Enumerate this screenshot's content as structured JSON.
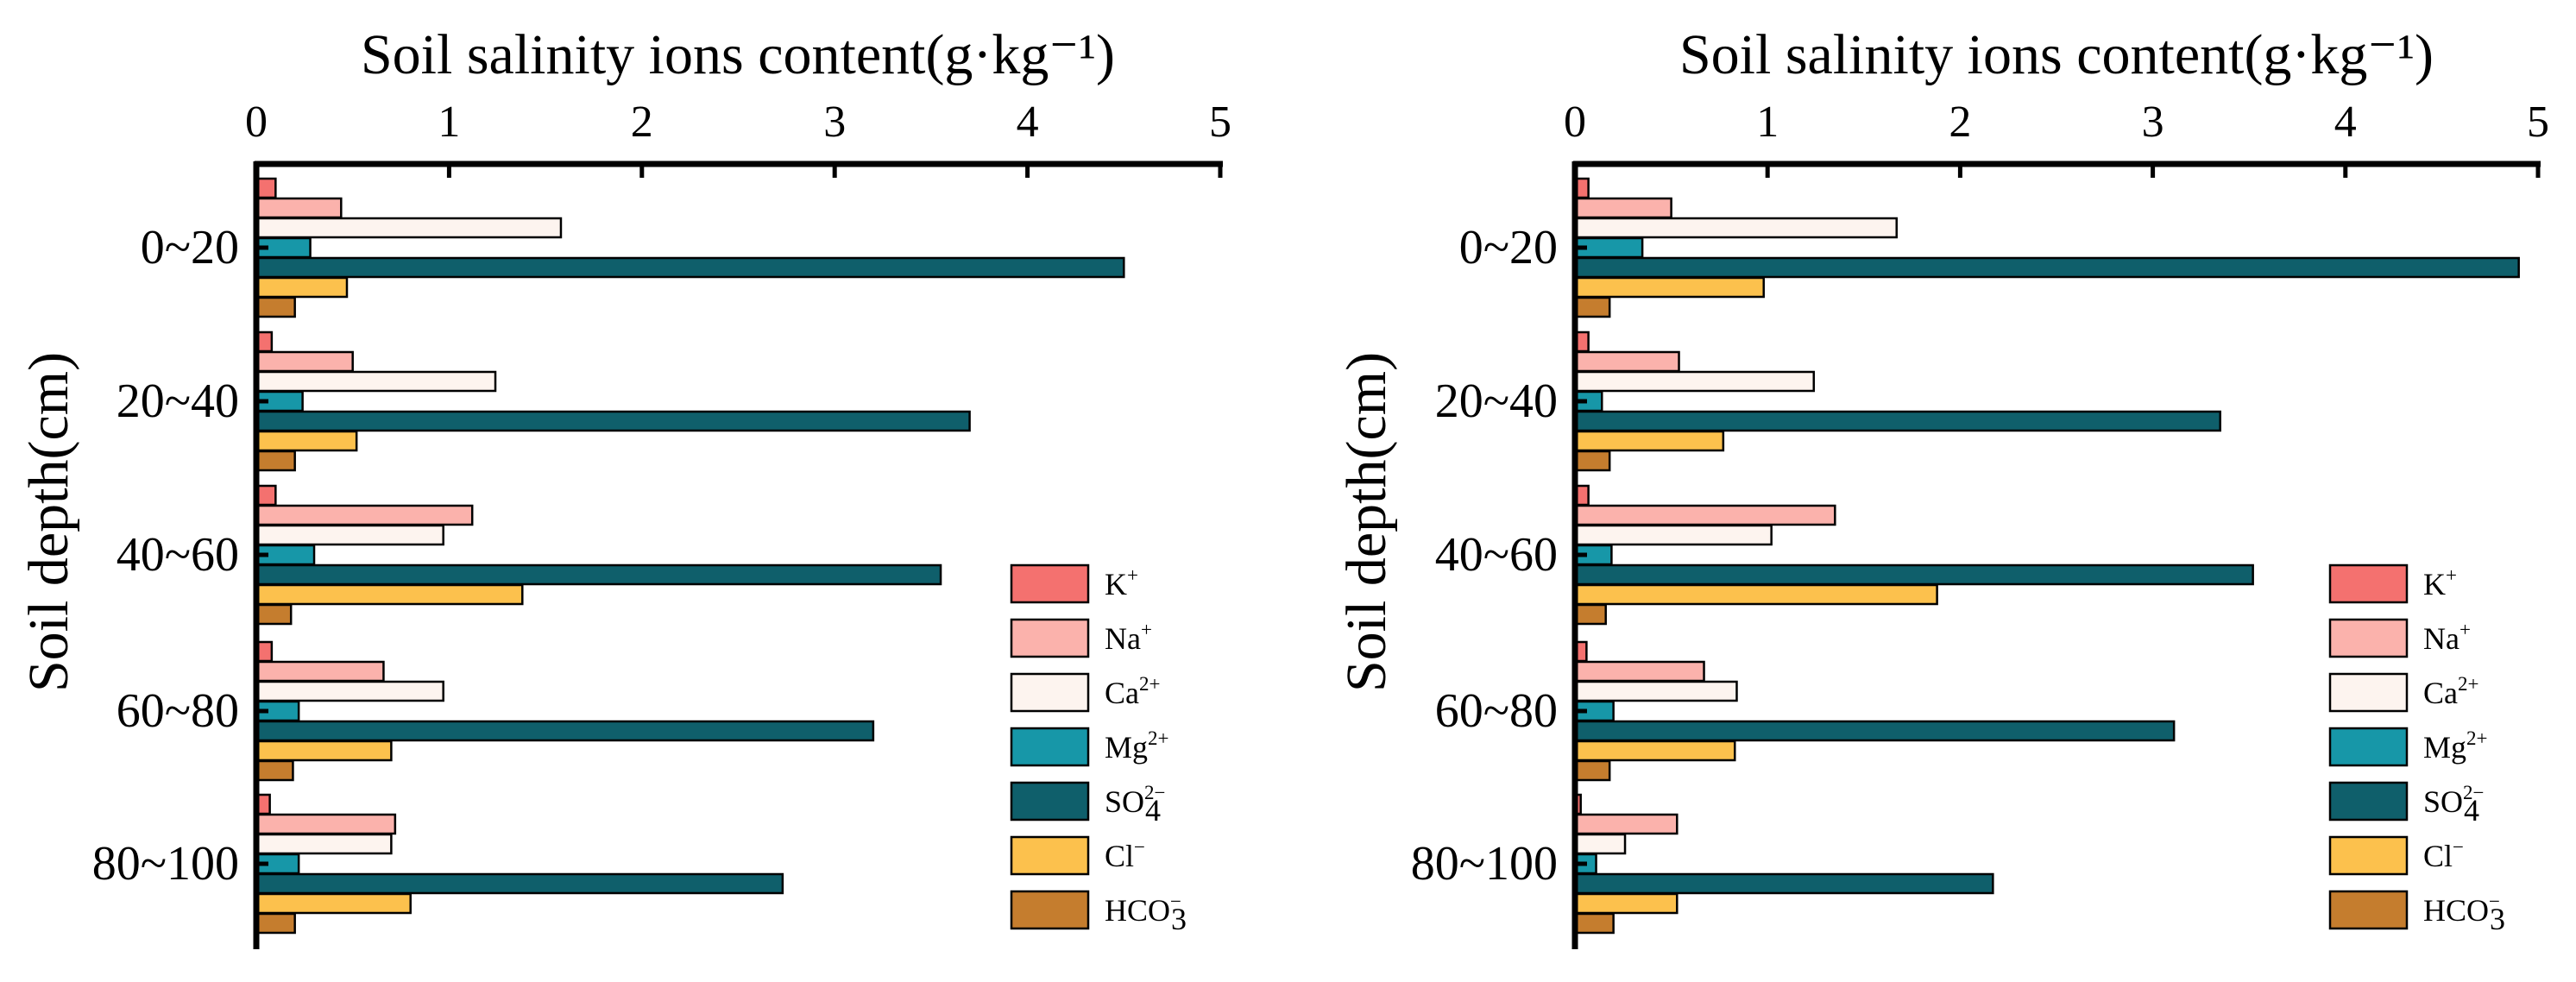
{
  "colors": {
    "K": "#f4716f",
    "Na": "#fbb2ac",
    "Ca": "#fdf4ef",
    "Mg": "#1797a8",
    "SO4": "#0f5f6b",
    "Cl": "#fcc14d",
    "HCO3": "#c57d2e"
  },
  "chart_data": [
    {
      "type": "bar",
      "orientation": "horizontal",
      "xlabel": "Soil salinity ions content(g·kg⁻¹)",
      "ylabel": "Soil depth(cm)",
      "xlim": [
        0,
        5
      ],
      "x_ticks": [
        "0",
        "1",
        "2",
        "3",
        "4",
        "5"
      ],
      "categories": [
        "0~20",
        "20~40",
        "40~60",
        "60~80",
        "80~100"
      ],
      "series": [
        {
          "name": "K+",
          "values": [
            0.1,
            0.08,
            0.1,
            0.08,
            0.07
          ]
        },
        {
          "name": "Na+",
          "values": [
            0.44,
            0.5,
            1.12,
            0.66,
            0.72
          ]
        },
        {
          "name": "Ca2+",
          "values": [
            1.58,
            1.24,
            0.97,
            0.97,
            0.7
          ]
        },
        {
          "name": "Mg2+",
          "values": [
            0.28,
            0.24,
            0.3,
            0.22,
            0.22
          ]
        },
        {
          "name": "SO4 2-",
          "values": [
            4.5,
            3.7,
            3.55,
            3.2,
            2.73
          ]
        },
        {
          "name": "Cl-",
          "values": [
            0.47,
            0.52,
            1.38,
            0.7,
            0.8
          ]
        },
        {
          "name": "HCO3-",
          "values": [
            0.2,
            0.2,
            0.18,
            0.19,
            0.2
          ]
        }
      ],
      "legend_position": "bottom-right"
    },
    {
      "type": "bar",
      "orientation": "horizontal",
      "xlabel": "Soil salinity ions content(g·kg⁻¹)",
      "ylabel": "Soil depth(cm)",
      "xlim": [
        0,
        5
      ],
      "x_ticks": [
        "0",
        "1",
        "2",
        "3",
        "4",
        "5"
      ],
      "categories": [
        "0~20",
        "20~40",
        "40~60",
        "60~80",
        "80~100"
      ],
      "series": [
        {
          "name": "K+",
          "values": [
            0.07,
            0.07,
            0.07,
            0.06,
            0.03
          ]
        },
        {
          "name": "Na+",
          "values": [
            0.5,
            0.54,
            1.35,
            0.67,
            0.53
          ]
        },
        {
          "name": "Ca2+",
          "values": [
            1.67,
            1.24,
            1.02,
            0.84,
            0.26
          ]
        },
        {
          "name": "Mg2+",
          "values": [
            0.35,
            0.14,
            0.19,
            0.2,
            0.11
          ]
        },
        {
          "name": "SO4 2-",
          "values": [
            4.9,
            3.35,
            3.52,
            3.11,
            2.17
          ]
        },
        {
          "name": "Cl-",
          "values": [
            0.98,
            0.77,
            1.88,
            0.83,
            0.53
          ]
        },
        {
          "name": "HCO3-",
          "values": [
            0.18,
            0.18,
            0.16,
            0.18,
            0.2
          ]
        }
      ],
      "legend_position": "bottom-right"
    }
  ],
  "legend": [
    {
      "key": "K",
      "base": "K",
      "sup": "+",
      "sub": ""
    },
    {
      "key": "Na",
      "base": "Na",
      "sup": "+",
      "sub": ""
    },
    {
      "key": "Ca",
      "base": "Ca",
      "sup": "2+",
      "sub": ""
    },
    {
      "key": "Mg",
      "base": "Mg",
      "sup": "2+",
      "sub": ""
    },
    {
      "key": "SO4",
      "base": "SO",
      "sup": "2−",
      "sub": "4"
    },
    {
      "key": "Cl",
      "base": "Cl",
      "sup": "−",
      "sub": ""
    },
    {
      "key": "HCO3",
      "base": "HCO",
      "sup": "−",
      "sub": "3"
    }
  ]
}
